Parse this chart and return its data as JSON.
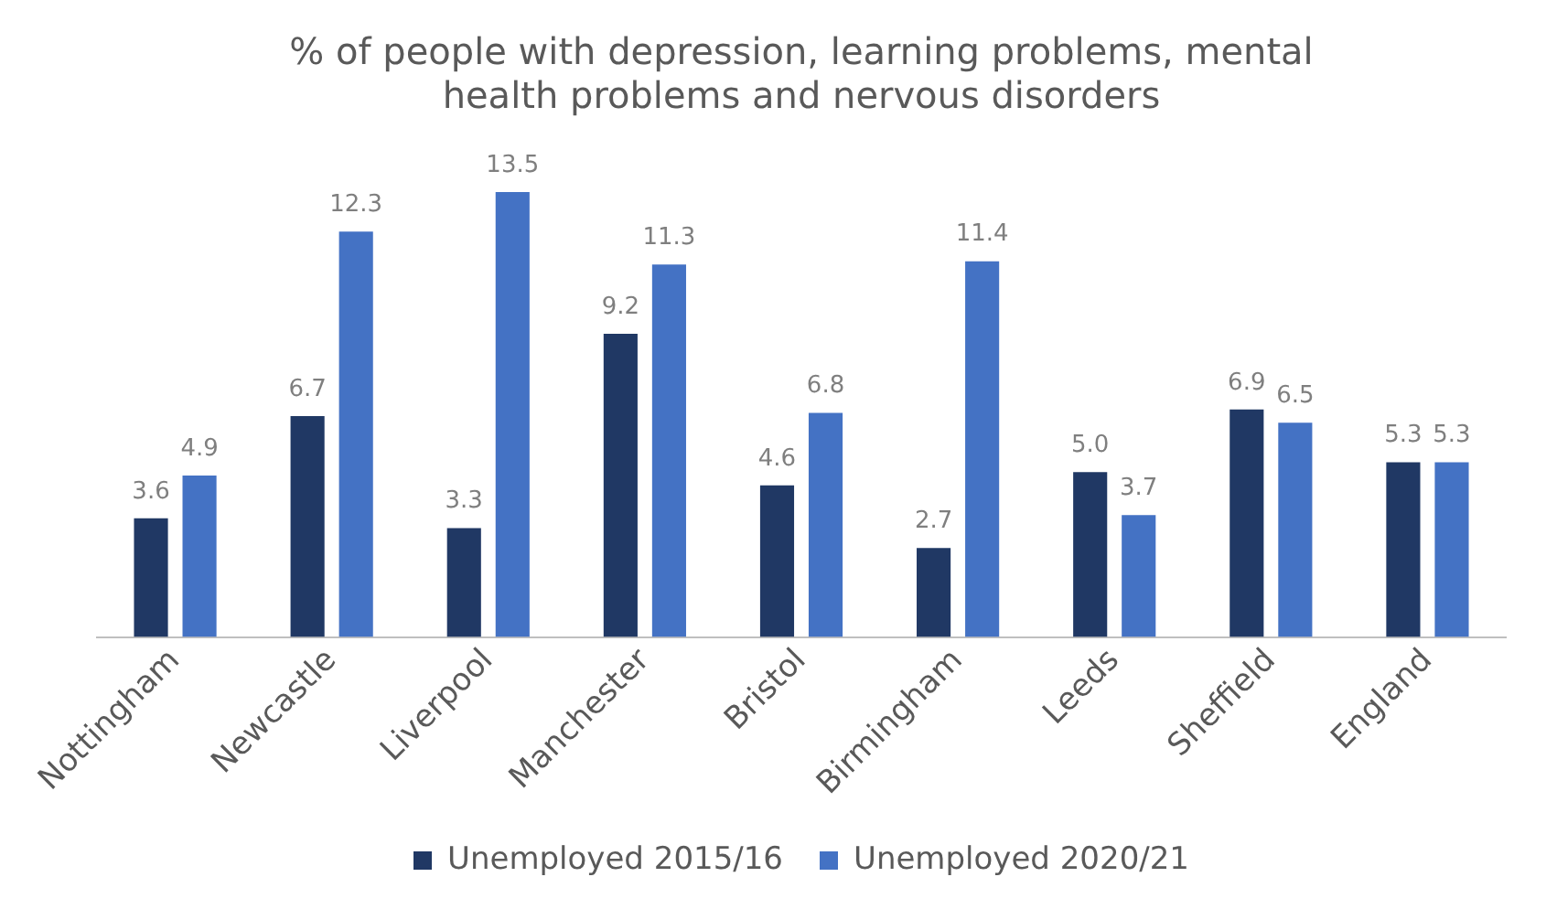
{
  "chart_data": {
    "type": "bar",
    "title": "% of people with depression, learning problems, mental health problems and nervous disorders",
    "categories": [
      "Nottingham",
      "Newcastle",
      "Liverpool",
      "Manchester",
      "Bristol",
      "Birmingham",
      "Leeds",
      "Sheffield",
      "England"
    ],
    "series": [
      {
        "name": "Unemployed 2015/16",
        "color": "#203864",
        "values": [
          3.6,
          6.7,
          3.3,
          9.2,
          4.6,
          2.7,
          5.0,
          6.9,
          5.3
        ],
        "value_labels": [
          "3.6",
          "6.7",
          "3.3",
          "9.2",
          "4.6",
          "2.7",
          "5.0",
          "6.9",
          "5.3"
        ]
      },
      {
        "name": "Unemployed 2020/21",
        "color": "#4472c4",
        "values": [
          4.9,
          12.3,
          13.5,
          11.3,
          6.8,
          11.4,
          3.7,
          6.5,
          5.3
        ],
        "value_labels": [
          "4.9",
          "12.3",
          "13.5",
          "11.3",
          "6.8",
          "11.4",
          "3.7",
          "6.5",
          "5.3"
        ]
      }
    ],
    "legend": "bottom",
    "grid": false,
    "tick_labels": "x"
  }
}
